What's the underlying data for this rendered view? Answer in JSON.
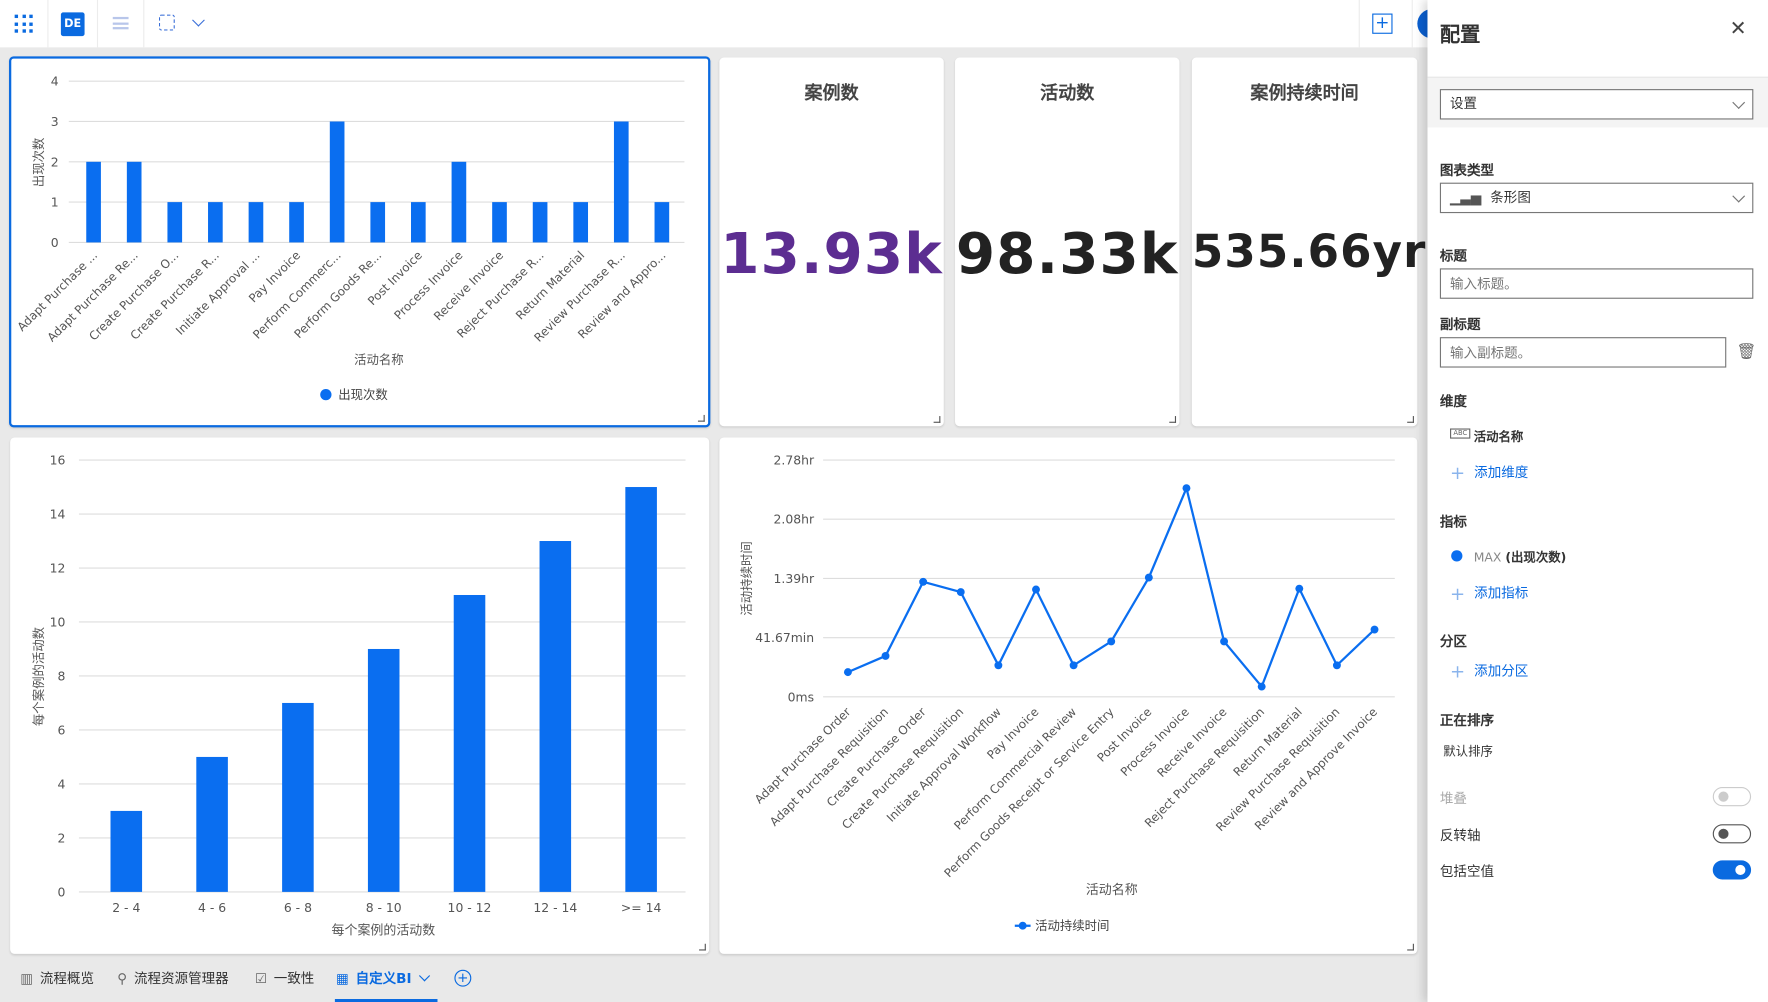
{
  "toolbar": {
    "avatar_initials": "DE"
  },
  "kpis": [
    {
      "title": "案例数",
      "value": "13.93k",
      "color": "#5c2d91"
    },
    {
      "title": "活动数",
      "value": "98.33k",
      "color": "#222222"
    },
    {
      "title": "案例持续时间",
      "value": "535.66yr",
      "color": "#222222"
    }
  ],
  "accent": "#0a6ef0",
  "chart_data": [
    {
      "type": "bar",
      "categories": [
        "Adapt Purchase ...",
        "Adapt Purchase Re...",
        "Create Purchase O...",
        "Create Purchase R...",
        "Initiate Approval ...",
        "Pay Invoice",
        "Perform Commerc...",
        "Perform Goods Re...",
        "Post Invoice",
        "Process Invoice",
        "Receive Invoice",
        "Reject Purchase R...",
        "Return Material",
        "Review Purchase R...",
        "Review and Appro..."
      ],
      "values": [
        2,
        2,
        1,
        1,
        1,
        1,
        3,
        1,
        1,
        2,
        1,
        1,
        1,
        3,
        1
      ],
      "xlabel": "活动名称",
      "ylabel": "出现次数",
      "ylim": [
        0,
        4
      ],
      "yticks": [
        0,
        1,
        2,
        3,
        4
      ],
      "legend": {
        "name": "出现次数",
        "position": "bottom"
      },
      "grid": true
    },
    {
      "type": "bar",
      "categories": [
        "2 - 4",
        "4 - 6",
        "6 - 8",
        "8 - 10",
        "10 - 12",
        "12 - 14",
        ">= 14"
      ],
      "values": [
        3,
        5,
        7,
        9,
        11,
        13,
        15
      ],
      "xlabel": "每个案例的活动数",
      "ylabel": "每个案例的活动数",
      "ylim": [
        0,
        16
      ],
      "yticks": [
        0,
        2,
        4,
        6,
        8,
        10,
        12,
        14,
        16
      ],
      "grid": true
    },
    {
      "type": "line",
      "categories": [
        "Adapt Purchase Order",
        "Adapt Purchase Requisition",
        "Create Purchase Order",
        "Create Purchase Requisition",
        "Initiate Approval Workflow",
        "Pay Invoice",
        "Perform Commercial Review",
        "Perform Goods Receipt or Service Entry",
        "Post Invoice",
        "Process Invoice",
        "Receive Invoice",
        "Reject Purchase Requisition",
        "Return Material",
        "Review Purchase Requisition",
        "Review and Approve Invoice"
      ],
      "values_hours": [
        0.29,
        0.48,
        1.35,
        1.23,
        0.37,
        1.26,
        0.37,
        0.65,
        1.4,
        2.45,
        0.65,
        0.12,
        1.27,
        0.37,
        0.79
      ],
      "xlabel": "活动名称",
      "ylabel": "活动持续时间",
      "ylim_hours": [
        0,
        2.78
      ],
      "ytick_labels": [
        "0ms",
        "41.67min",
        "1.39hr",
        "2.08hr",
        "2.78hr"
      ],
      "legend": {
        "name": "活动持续时间",
        "position": "bottom"
      },
      "grid": true
    }
  ],
  "panel": {
    "title": "配置",
    "section_select": "设置",
    "chart_type_label": "图表类型",
    "chart_type_value": "条形图",
    "title_label": "标题",
    "title_placeholder": "输入标题。",
    "subtitle_label": "副标题",
    "subtitle_placeholder": "输入副标题。",
    "dimension_label": "维度",
    "dimension_badge": "ABC",
    "dimension_value": "活动名称",
    "add_dimension": "添加维度",
    "measure_label": "指标",
    "measure_agg": "MAX",
    "measure_value": "(出现次数)",
    "add_measure": "添加指标",
    "partition_label": "分区",
    "add_partition": "添加分区",
    "sort_label": "正在排序",
    "sort_value": "默认排序",
    "toggles": [
      {
        "label": "堆叠",
        "on": false,
        "disabled": true
      },
      {
        "label": "反转轴",
        "on": false,
        "disabled": false
      },
      {
        "label": "包括空值",
        "on": true,
        "disabled": false
      }
    ]
  },
  "tabs": [
    {
      "label": "流程概览",
      "icon": "chart-icon",
      "active": false
    },
    {
      "label": "流程资源管理器",
      "icon": "process-map-icon",
      "active": false
    },
    {
      "label": "一致性",
      "icon": "conformance-flag-icon",
      "active": false
    },
    {
      "label": "自定义BI",
      "icon": "dashboard-grid-icon",
      "active": true
    }
  ]
}
